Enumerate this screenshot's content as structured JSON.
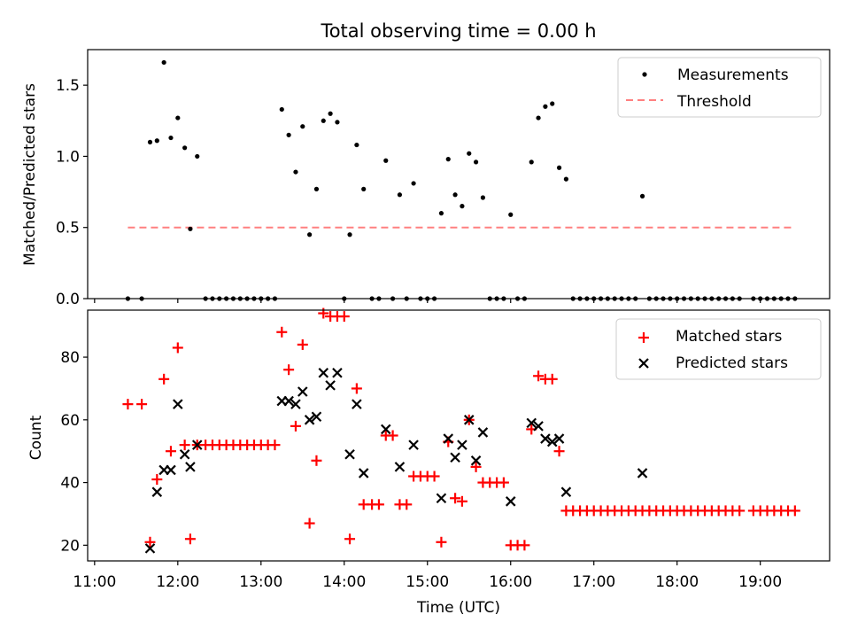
{
  "chart_data": [
    {
      "type": "scatter",
      "title": "Total observing time = 0.00 h",
      "ylabel": "Matched/Predicted stars",
      "xlabel": "",
      "xlim": [
        "10:55",
        "19:50"
      ],
      "ylim": [
        0,
        1.75
      ],
      "yticks": [
        "0.0",
        "0.5",
        "1.0",
        "1.5"
      ],
      "grid": false,
      "legend_position": "top-right",
      "series": [
        {
          "name": "Measurements",
          "color": "#000000",
          "marker": "dot",
          "points": [
            [
              "11:24",
              0
            ],
            [
              "11:34",
              0
            ],
            [
              "11:40",
              1.1
            ],
            [
              "11:45",
              1.11
            ],
            [
              "11:50",
              1.66
            ],
            [
              "11:55",
              1.13
            ],
            [
              "12:00",
              1.27
            ],
            [
              "12:05",
              1.06
            ],
            [
              "12:09",
              0.49
            ],
            [
              "12:14",
              1.0
            ],
            [
              "12:20",
              0
            ],
            [
              "12:25",
              0
            ],
            [
              "12:30",
              0
            ],
            [
              "12:35",
              0
            ],
            [
              "12:40",
              0
            ],
            [
              "12:45",
              0
            ],
            [
              "12:50",
              0
            ],
            [
              "12:55",
              0
            ],
            [
              "13:00",
              0
            ],
            [
              "13:05",
              0
            ],
            [
              "13:10",
              0
            ],
            [
              "13:15",
              1.33
            ],
            [
              "13:20",
              1.15
            ],
            [
              "13:25",
              0.89
            ],
            [
              "13:30",
              1.21
            ],
            [
              "13:35",
              0.45
            ],
            [
              "13:40",
              0.77
            ],
            [
              "13:45",
              1.25
            ],
            [
              "13:50",
              1.3
            ],
            [
              "13:55",
              1.24
            ],
            [
              "14:00",
              0
            ],
            [
              "14:04",
              0.45
            ],
            [
              "14:09",
              1.08
            ],
            [
              "14:14",
              0.77
            ],
            [
              "14:20",
              0
            ],
            [
              "14:25",
              0
            ],
            [
              "14:30",
              0.97
            ],
            [
              "14:35",
              0
            ],
            [
              "14:40",
              0.73
            ],
            [
              "14:45",
              0
            ],
            [
              "14:50",
              0.81
            ],
            [
              "14:55",
              0
            ],
            [
              "15:00",
              0
            ],
            [
              "15:05",
              0
            ],
            [
              "15:10",
              0.6
            ],
            [
              "15:15",
              0.98
            ],
            [
              "15:20",
              0.73
            ],
            [
              "15:25",
              0.65
            ],
            [
              "15:30",
              1.02
            ],
            [
              "15:35",
              0.96
            ],
            [
              "15:40",
              0.71
            ],
            [
              "15:45",
              0
            ],
            [
              "15:50",
              0
            ],
            [
              "15:55",
              0
            ],
            [
              "16:00",
              0.59
            ],
            [
              "16:05",
              0
            ],
            [
              "16:10",
              0
            ],
            [
              "16:15",
              0.96
            ],
            [
              "16:20",
              1.27
            ],
            [
              "16:25",
              1.35
            ],
            [
              "16:30",
              1.37
            ],
            [
              "16:35",
              0.92
            ],
            [
              "16:40",
              0.84
            ],
            [
              "16:45",
              0
            ],
            [
              "16:50",
              0
            ],
            [
              "16:55",
              0
            ],
            [
              "17:00",
              0
            ],
            [
              "17:05",
              0
            ],
            [
              "17:10",
              0
            ],
            [
              "17:15",
              0
            ],
            [
              "17:20",
              0
            ],
            [
              "17:25",
              0
            ],
            [
              "17:30",
              0
            ],
            [
              "17:35",
              0.72
            ],
            [
              "17:40",
              0
            ],
            [
              "17:45",
              0
            ],
            [
              "17:50",
              0
            ],
            [
              "17:55",
              0
            ],
            [
              "18:00",
              0
            ],
            [
              "18:05",
              0
            ],
            [
              "18:10",
              0
            ],
            [
              "18:15",
              0
            ],
            [
              "18:20",
              0
            ],
            [
              "18:25",
              0
            ],
            [
              "18:30",
              0
            ],
            [
              "18:35",
              0
            ],
            [
              "18:40",
              0
            ],
            [
              "18:45",
              0
            ],
            [
              "18:55",
              0
            ],
            [
              "19:00",
              0
            ],
            [
              "19:05",
              0
            ],
            [
              "19:10",
              0
            ],
            [
              "19:15",
              0
            ],
            [
              "19:20",
              0
            ],
            [
              "19:25",
              0
            ]
          ]
        },
        {
          "name": "Threshold",
          "color": "#ff8080",
          "style": "dashed",
          "points": [
            [
              "11:24",
              0.5
            ],
            [
              "19:23",
              0.5
            ]
          ]
        }
      ]
    },
    {
      "type": "scatter",
      "title": "",
      "xlabel": "Time (UTC)",
      "ylabel": "Count",
      "xlim": [
        "10:55",
        "19:50"
      ],
      "ylim": [
        15,
        95
      ],
      "xticks": [
        "11:00",
        "12:00",
        "13:00",
        "14:00",
        "15:00",
        "16:00",
        "17:00",
        "18:00",
        "19:00"
      ],
      "yticks": [
        "20",
        "40",
        "60",
        "80"
      ],
      "grid": false,
      "legend_position": "top-right",
      "series": [
        {
          "name": "Matched stars",
          "color": "#ff0000",
          "marker": "plus",
          "points": [
            [
              "11:24",
              65
            ],
            [
              "11:34",
              65
            ],
            [
              "11:40",
              21
            ],
            [
              "11:45",
              41
            ],
            [
              "11:50",
              73
            ],
            [
              "11:55",
              50
            ],
            [
              "12:00",
              83
            ],
            [
              "12:05",
              52
            ],
            [
              "12:09",
              22
            ],
            [
              "12:14",
              52
            ],
            [
              "12:20",
              52
            ],
            [
              "12:25",
              52
            ],
            [
              "12:30",
              52
            ],
            [
              "12:35",
              52
            ],
            [
              "12:40",
              52
            ],
            [
              "12:45",
              52
            ],
            [
              "12:50",
              52
            ],
            [
              "12:55",
              52
            ],
            [
              "13:00",
              52
            ],
            [
              "13:05",
              52
            ],
            [
              "13:10",
              52
            ],
            [
              "13:15",
              88
            ],
            [
              "13:20",
              76
            ],
            [
              "13:25",
              58
            ],
            [
              "13:30",
              84
            ],
            [
              "13:35",
              27
            ],
            [
              "13:40",
              47
            ],
            [
              "13:45",
              94
            ],
            [
              "13:50",
              93
            ],
            [
              "13:55",
              93
            ],
            [
              "14:00",
              93
            ],
            [
              "14:04",
              22
            ],
            [
              "14:09",
              70
            ],
            [
              "14:14",
              33
            ],
            [
              "14:20",
              33
            ],
            [
              "14:25",
              33
            ],
            [
              "14:30",
              55
            ],
            [
              "14:35",
              55
            ],
            [
              "14:40",
              33
            ],
            [
              "14:45",
              33
            ],
            [
              "14:50",
              42
            ],
            [
              "14:55",
              42
            ],
            [
              "15:00",
              42
            ],
            [
              "15:05",
              42
            ],
            [
              "15:10",
              21
            ],
            [
              "15:15",
              53
            ],
            [
              "15:20",
              35
            ],
            [
              "15:25",
              34
            ],
            [
              "15:30",
              60
            ],
            [
              "15:35",
              45
            ],
            [
              "15:40",
              40
            ],
            [
              "15:45",
              40
            ],
            [
              "15:50",
              40
            ],
            [
              "15:55",
              40
            ],
            [
              "16:00",
              20
            ],
            [
              "16:05",
              20
            ],
            [
              "16:10",
              20
            ],
            [
              "16:15",
              57
            ],
            [
              "16:20",
              74
            ],
            [
              "16:25",
              73
            ],
            [
              "16:30",
              73
            ],
            [
              "16:35",
              50
            ],
            [
              "16:40",
              31
            ],
            [
              "16:45",
              31
            ],
            [
              "16:50",
              31
            ],
            [
              "16:55",
              31
            ],
            [
              "17:00",
              31
            ],
            [
              "17:05",
              31
            ],
            [
              "17:10",
              31
            ],
            [
              "17:15",
              31
            ],
            [
              "17:20",
              31
            ],
            [
              "17:25",
              31
            ],
            [
              "17:30",
              31
            ],
            [
              "17:35",
              31
            ],
            [
              "17:40",
              31
            ],
            [
              "17:45",
              31
            ],
            [
              "17:50",
              31
            ],
            [
              "17:55",
              31
            ],
            [
              "18:00",
              31
            ],
            [
              "18:05",
              31
            ],
            [
              "18:10",
              31
            ],
            [
              "18:15",
              31
            ],
            [
              "18:20",
              31
            ],
            [
              "18:25",
              31
            ],
            [
              "18:30",
              31
            ],
            [
              "18:35",
              31
            ],
            [
              "18:40",
              31
            ],
            [
              "18:45",
              31
            ],
            [
              "18:55",
              31
            ],
            [
              "19:00",
              31
            ],
            [
              "19:05",
              31
            ],
            [
              "19:10",
              31
            ],
            [
              "19:15",
              31
            ],
            [
              "19:20",
              31
            ],
            [
              "19:25",
              31
            ]
          ]
        },
        {
          "name": "Predicted stars",
          "color": "#000000",
          "marker": "x",
          "points": [
            [
              "11:40",
              19
            ],
            [
              "11:45",
              37
            ],
            [
              "11:50",
              44
            ],
            [
              "11:55",
              44
            ],
            [
              "12:00",
              65
            ],
            [
              "12:05",
              49
            ],
            [
              "12:09",
              45
            ],
            [
              "12:14",
              52
            ],
            [
              "13:15",
              66
            ],
            [
              "13:20",
              66
            ],
            [
              "13:25",
              65
            ],
            [
              "13:30",
              69
            ],
            [
              "13:35",
              60
            ],
            [
              "13:40",
              61
            ],
            [
              "13:45",
              75
            ],
            [
              "13:50",
              71
            ],
            [
              "13:55",
              75
            ],
            [
              "14:04",
              49
            ],
            [
              "14:09",
              65
            ],
            [
              "14:14",
              43
            ],
            [
              "14:30",
              57
            ],
            [
              "14:40",
              45
            ],
            [
              "14:50",
              52
            ],
            [
              "15:10",
              35
            ],
            [
              "15:15",
              54
            ],
            [
              "15:20",
              48
            ],
            [
              "15:25",
              52
            ],
            [
              "15:30",
              60
            ],
            [
              "15:35",
              47
            ],
            [
              "15:40",
              56
            ],
            [
              "16:00",
              34
            ],
            [
              "16:15",
              59
            ],
            [
              "16:20",
              58
            ],
            [
              "16:25",
              54
            ],
            [
              "16:30",
              53
            ],
            [
              "16:35",
              54
            ],
            [
              "16:40",
              37
            ],
            [
              "17:35",
              43
            ]
          ]
        }
      ]
    }
  ]
}
